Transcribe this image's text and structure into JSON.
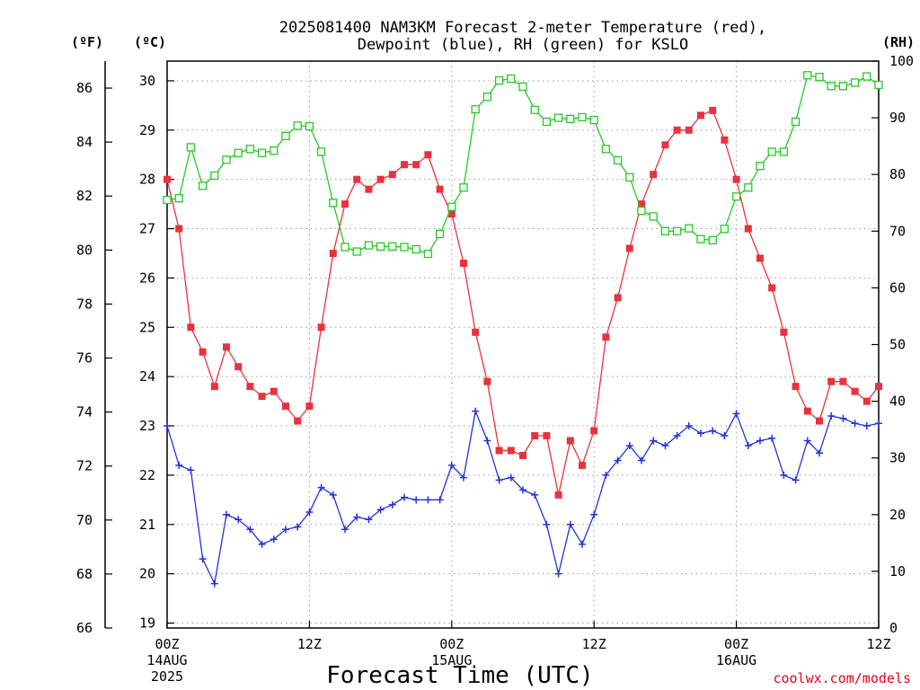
{
  "chart_data": {
    "type": "line",
    "title": "2025081400 NAM3KM Forecast 2-meter Temperature (red),",
    "subtitle": "Dewpoint (blue), RH (green) for KSLO",
    "xlabel": "Forecast Time (UTC)",
    "credit": "coolwx.com/models",
    "units": {
      "left_outer": "(ºF)",
      "left_inner": "(ºC)",
      "right": "(RH)"
    },
    "x_unit": "hours since 2025-08-14 00Z",
    "xlim": [
      0,
      60
    ],
    "x_ticks": [
      {
        "hour": 0,
        "lines": [
          "00Z",
          "14AUG",
          "2025"
        ]
      },
      {
        "hour": 12,
        "lines": [
          "12Z"
        ]
      },
      {
        "hour": 24,
        "lines": [
          "00Z",
          "15AUG"
        ]
      },
      {
        "hour": 36,
        "lines": [
          "12Z"
        ]
      },
      {
        "hour": 48,
        "lines": [
          "00Z",
          "16AUG"
        ]
      },
      {
        "hour": 60,
        "lines": [
          "12Z"
        ]
      }
    ],
    "y_celsius": {
      "lim": [
        18.9,
        30.4
      ],
      "ticks": [
        19,
        20,
        21,
        22,
        23,
        24,
        25,
        26,
        27,
        28,
        29,
        30
      ]
    },
    "y_fahrenheit": {
      "lim": [
        66,
        87
      ],
      "ticks": [
        66,
        68,
        70,
        72,
        74,
        76,
        78,
        80,
        82,
        84,
        86
      ]
    },
    "y_rh": {
      "lim": [
        0,
        100
      ],
      "ticks": [
        0,
        10,
        20,
        30,
        40,
        50,
        60,
        70,
        80,
        90,
        100
      ]
    },
    "grid": true,
    "series": [
      {
        "name": "2-meter Temperature",
        "color": "#e8323c",
        "marker": "filled-square",
        "axis": "celsius",
        "values": [
          28.0,
          27.0,
          25.0,
          24.5,
          23.8,
          24.6,
          24.2,
          23.8,
          23.6,
          23.7,
          23.4,
          23.1,
          23.4,
          25.0,
          26.5,
          27.5,
          28.0,
          27.8,
          28.0,
          28.1,
          28.3,
          28.3,
          28.5,
          27.8,
          27.3,
          26.3,
          24.9,
          23.9,
          22.5,
          22.5,
          22.4,
          22.8,
          22.8,
          21.6,
          22.7,
          22.2,
          22.9,
          24.8,
          25.6,
          26.6,
          27.5,
          28.1,
          28.7,
          29.0,
          29.0,
          29.3,
          29.4,
          28.8,
          28.0,
          27.0,
          26.4,
          25.8,
          24.9,
          23.8,
          23.3,
          23.1,
          23.9,
          23.9,
          23.7,
          23.5,
          23.8
        ]
      },
      {
        "name": "Dewpoint",
        "color": "#2233dd",
        "marker": "plus",
        "axis": "celsius",
        "values": [
          23.0,
          22.2,
          22.1,
          20.3,
          19.8,
          21.2,
          21.1,
          20.9,
          20.6,
          20.7,
          20.9,
          20.95,
          21.25,
          21.75,
          21.6,
          20.9,
          21.15,
          21.1,
          21.3,
          21.4,
          21.55,
          21.5,
          21.5,
          21.5,
          22.2,
          21.95,
          23.3,
          22.7,
          21.9,
          21.95,
          21.7,
          21.6,
          21.0,
          20.0,
          21.0,
          20.6,
          21.2,
          22.0,
          22.3,
          22.6,
          22.3,
          22.7,
          22.6,
          22.8,
          23.0,
          22.85,
          22.9,
          22.8,
          23.25,
          22.6,
          22.7,
          22.75,
          22.0,
          21.9,
          22.7,
          22.45,
          23.2,
          23.15,
          23.05,
          23.0,
          23.05
        ]
      },
      {
        "name": "RH",
        "color": "#22cc22",
        "marker": "open-square",
        "axis": "rh",
        "values": [
          75.5,
          75.8,
          84.8,
          78.0,
          79.8,
          82.6,
          83.8,
          84.5,
          83.8,
          84.2,
          86.8,
          88.6,
          88.5,
          84.0,
          75.0,
          67.2,
          66.4,
          67.5,
          67.3,
          67.3,
          67.2,
          66.8,
          66.0,
          69.5,
          74.3,
          77.7,
          91.5,
          93.7,
          96.6,
          96.9,
          95.5,
          91.4,
          89.3,
          90.0,
          89.8,
          90.1,
          89.6,
          84.5,
          82.5,
          79.5,
          73.6,
          72.6,
          70.0,
          70.0,
          70.5,
          68.6,
          68.4,
          70.4,
          76.1,
          77.7,
          81.5,
          84.0,
          84.0,
          89.3,
          97.5,
          97.2,
          95.6,
          95.6,
          96.2,
          97.3,
          95.8
        ]
      }
    ]
  }
}
